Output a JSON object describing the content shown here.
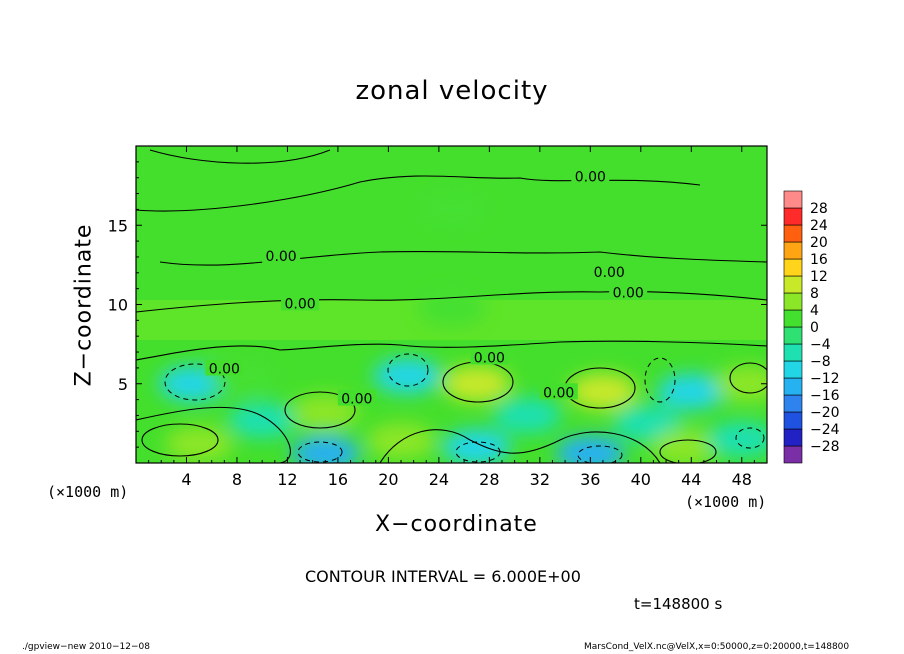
{
  "title": "zonal velocity",
  "xlabel": "X−coordinate",
  "ylabel": "Z−coordinate",
  "x_unit_left": "(×1000 m)",
  "x_unit_right": "(×1000 m)",
  "contour_interval": "CONTOUR INTERVAL = 6.000E+00",
  "time_label": "t=148800 s",
  "footer_left": "./gpview−new  2010−12−08",
  "footer_right": "MarsCond_VelX.nc@VelX,x=0:50000,z=0:20000,t=148800",
  "chart_data": {
    "type": "heatmap",
    "title": "zonal velocity",
    "xlabel": "X−coordinate",
    "ylabel": "Z−coordinate",
    "x_unit": "(×1000 m)",
    "xlim": [
      0,
      50
    ],
    "ylim": [
      0,
      20
    ],
    "x_ticks": [
      4,
      8,
      12,
      16,
      20,
      24,
      28,
      32,
      36,
      40,
      44,
      48
    ],
    "y_ticks": [
      5,
      10,
      15
    ],
    "contour_interval": 6.0,
    "contour_labels": [
      {
        "text": "0.00",
        "x": 36,
        "z": 18
      },
      {
        "text": "0.00",
        "x": 11.5,
        "z": 13
      },
      {
        "text": "0.00",
        "x": 37.5,
        "z": 12
      },
      {
        "text": "0.00",
        "x": 39,
        "z": 10.7
      },
      {
        "text": "0.00",
        "x": 13,
        "z": 10
      },
      {
        "text": "0.00",
        "x": 7,
        "z": 5.9
      },
      {
        "text": "0.00",
        "x": 28,
        "z": 6.6
      },
      {
        "text": "0.00",
        "x": 17.5,
        "z": 4.0
      },
      {
        "text": "0.00",
        "x": 33.5,
        "z": 4.4
      }
    ],
    "cells": [
      {
        "x": 5,
        "z": 1.2,
        "value": 7
      },
      {
        "x": 4.5,
        "z": 5,
        "value": -9
      },
      {
        "x": 8.5,
        "z": 5.5,
        "value": 3
      },
      {
        "x": 10,
        "z": 2.7,
        "value": -7
      },
      {
        "x": 15,
        "z": 3.2,
        "value": 7
      },
      {
        "x": 15,
        "z": 0.6,
        "value": -12
      },
      {
        "x": 21.5,
        "z": 5.5,
        "value": -9
      },
      {
        "x": 21,
        "z": 1.4,
        "value": 5
      },
      {
        "x": 27,
        "z": 5,
        "value": 9
      },
      {
        "x": 27,
        "z": 1,
        "value": -10
      },
      {
        "x": 31,
        "z": 3,
        "value": -6
      },
      {
        "x": 37,
        "z": 4.5,
        "value": 10
      },
      {
        "x": 36,
        "z": 0.6,
        "value": -14
      },
      {
        "x": 40.5,
        "z": 2.5,
        "value": -6
      },
      {
        "x": 43.5,
        "z": 1,
        "value": 7
      },
      {
        "x": 44,
        "z": 4.5,
        "value": -9
      },
      {
        "x": 48.5,
        "z": 5,
        "value": 8
      },
      {
        "x": 48,
        "z": 1.5,
        "value": -7
      },
      {
        "x": 25,
        "z": 9.8,
        "value": 4
      },
      {
        "x": 25,
        "z": 16,
        "value": 2
      }
    ],
    "colorbar": {
      "levels": [
        -28,
        -24,
        -20,
        -16,
        -12,
        -8,
        -4,
        0,
        4,
        8,
        12,
        16,
        20,
        24,
        28
      ],
      "colors": [
        "#7b2fa6",
        "#2121c4",
        "#1f52e0",
        "#2f83ee",
        "#26b1f0",
        "#22d6e6",
        "#1fe0b0",
        "#2fe072",
        "#44e030",
        "#8ce628",
        "#c8e82a",
        "#ffd41a",
        "#ffa514",
        "#ff6010",
        "#ff2a2a",
        "#ff8a8a"
      ]
    }
  }
}
